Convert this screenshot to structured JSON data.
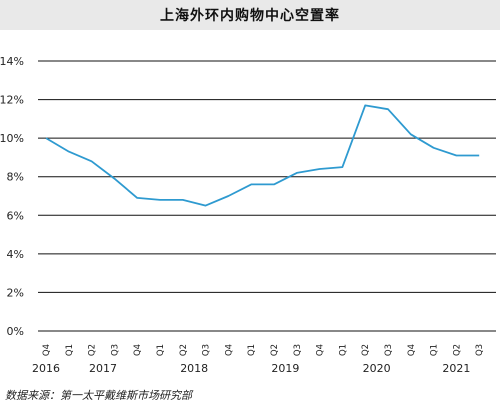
{
  "title": "上海外环内购物中心空置率",
  "source": "数据来源：第一太平戴维斯市场研究部",
  "colors": {
    "line": "#2e9ad0",
    "grid": "#111111",
    "title_bg": "#e9e9e9"
  },
  "chart_data": {
    "type": "line",
    "title": "上海外环内购物中心空置率",
    "xlabel": "",
    "ylabel": "",
    "ylim": [
      0,
      14
    ],
    "y_ticks": [
      "0%",
      "2%",
      "4%",
      "6%",
      "8%",
      "10%",
      "12%",
      "14%"
    ],
    "grid": "horizontal",
    "x": [
      "Q4",
      "Q1",
      "Q2",
      "Q3",
      "Q4",
      "Q1",
      "Q2",
      "Q3",
      "Q4",
      "Q1",
      "Q2",
      "Q3",
      "Q4",
      "Q1",
      "Q2",
      "Q3",
      "Q4",
      "Q1",
      "Q2",
      "Q3"
    ],
    "years": [
      {
        "label": "2016",
        "index": 0
      },
      {
        "label": "2017",
        "index": 2.5
      },
      {
        "label": "2018",
        "index": 6.5
      },
      {
        "label": "2019",
        "index": 10.5
      },
      {
        "label": "2020",
        "index": 14.5
      },
      {
        "label": "2021",
        "index": 18
      }
    ],
    "series": [
      {
        "values": [
          10.0,
          9.3,
          8.8,
          7.9,
          6.9,
          6.8,
          6.8,
          6.5,
          7.0,
          7.6,
          7.6,
          8.2,
          8.4,
          8.5,
          11.7,
          11.5,
          10.2,
          9.5,
          9.1,
          9.1
        ]
      }
    ]
  }
}
